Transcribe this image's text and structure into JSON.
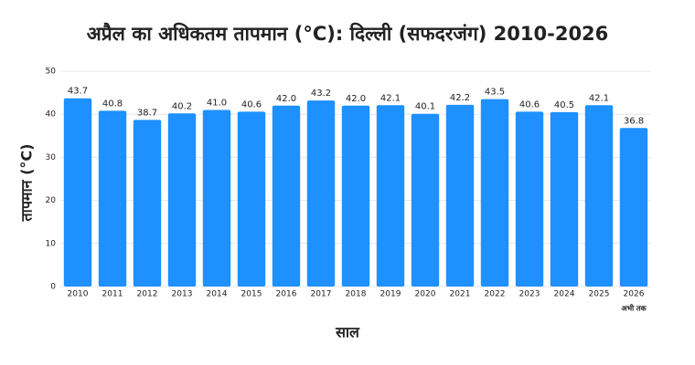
{
  "chart_data": {
    "type": "bar",
    "title": "अप्रैल का अधिकतम तापमान (°C): दिल्ली (सफदरजंग) 2010-2026",
    "x_label": "साल",
    "y_label": "तापमान (°C)",
    "categories": [
      "2010",
      "2011",
      "2012",
      "2013",
      "2014",
      "2015",
      "2016",
      "2017",
      "2018",
      "2019",
      "2020",
      "2021",
      "2022",
      "2023",
      "2024",
      "2025",
      "2026"
    ],
    "x_annotation": "अभी तक",
    "values": [
      43.7,
      40.8,
      38.7,
      40.2,
      41.0,
      40.6,
      42.0,
      43.2,
      42.0,
      42.1,
      40.1,
      42.2,
      43.5,
      40.6,
      40.5,
      42.1,
      36.8
    ],
    "value_labels": [
      "43.7",
      "40.8",
      "38.7",
      "40.2",
      "41.0",
      "40.6",
      "42.0",
      "43.2",
      "42.0",
      "42.1",
      "40.1",
      "42.2",
      "43.5",
      "40.6",
      "40.5",
      "42.1",
      "36.8"
    ],
    "color": "#1e90ff",
    "ylim": [
      0,
      50
    ],
    "yticks": [
      0,
      10,
      20,
      30,
      40,
      50
    ],
    "grid": true
  }
}
